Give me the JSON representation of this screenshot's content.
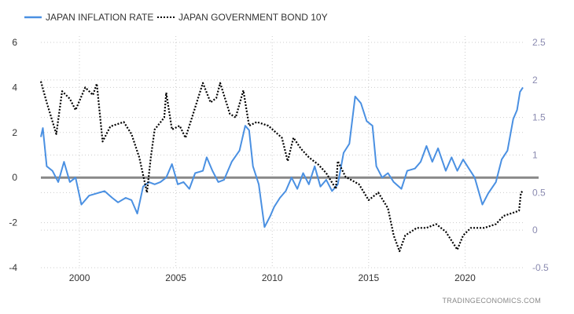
{
  "chart_data": {
    "type": "line",
    "title": "",
    "xlabel": "",
    "ylabel": "",
    "x_range": [
      1998.0,
      2023.0
    ],
    "x_ticks": [
      "2000",
      "2005",
      "2010",
      "2015",
      "2020"
    ],
    "x_tick_values": [
      2000,
      2005,
      2010,
      2015,
      2020
    ],
    "left_axis": {
      "range": [
        -4,
        6
      ],
      "ticks": [
        "-4",
        "-2",
        "0",
        "2",
        "4",
        "6"
      ],
      "tick_values": [
        -4,
        -2,
        0,
        2,
        4,
        6
      ]
    },
    "right_axis": {
      "range": [
        -0.5,
        2.5
      ],
      "ticks": [
        "-0.5",
        "0",
        "0.5",
        "1",
        "1.5",
        "2",
        "2.5"
      ],
      "tick_values": [
        -0.5,
        0,
        0.5,
        1,
        1.5,
        2,
        2.5
      ]
    },
    "zero_line": 0,
    "grid": true,
    "legend_position": "top-left",
    "series": [
      {
        "name": "JAPAN INFLATION RATE",
        "axis": "left",
        "color": "#4a90e2",
        "style": "solid",
        "x": [
          1998.0,
          1998.1,
          1998.3,
          1998.6,
          1998.9,
          1999.2,
          1999.5,
          1999.8,
          2000.1,
          2000.5,
          2000.9,
          2001.3,
          2001.7,
          2002.0,
          2002.4,
          2002.7,
          2003.0,
          2003.3,
          2003.6,
          2003.9,
          2004.2,
          2004.5,
          2004.8,
          2005.1,
          2005.4,
          2005.7,
          2006.0,
          2006.4,
          2006.6,
          2006.9,
          2007.2,
          2007.5,
          2007.9,
          2008.3,
          2008.6,
          2008.8,
          2009.0,
          2009.3,
          2009.6,
          2009.9,
          2010.1,
          2010.4,
          2010.7,
          2011.0,
          2011.3,
          2011.6,
          2011.9,
          2012.2,
          2012.5,
          2012.8,
          2013.1,
          2013.4,
          2013.7,
          2014.0,
          2014.3,
          2014.6,
          2014.9,
          2015.2,
          2015.4,
          2015.7,
          2016.0,
          2016.3,
          2016.7,
          2017.0,
          2017.4,
          2017.7,
          2018.0,
          2018.3,
          2018.6,
          2019.0,
          2019.3,
          2019.6,
          2019.9,
          2020.2,
          2020.5,
          2020.9,
          2021.2,
          2021.6,
          2021.9,
          2022.2,
          2022.5,
          2022.7,
          2022.85,
          2023.0
        ],
        "values": [
          1.8,
          2.2,
          0.5,
          0.3,
          -0.2,
          0.7,
          -0.2,
          0.0,
          -1.2,
          -0.8,
          -0.7,
          -0.6,
          -0.9,
          -1.1,
          -0.9,
          -1.0,
          -1.6,
          -0.4,
          -0.2,
          -0.3,
          -0.2,
          0.0,
          0.6,
          -0.3,
          -0.2,
          -0.5,
          0.2,
          0.3,
          0.9,
          0.3,
          -0.2,
          -0.1,
          0.7,
          1.2,
          2.3,
          2.1,
          0.5,
          -0.3,
          -2.2,
          -1.7,
          -1.3,
          -0.9,
          -0.6,
          0.0,
          -0.5,
          0.2,
          -0.3,
          0.5,
          -0.4,
          -0.1,
          -0.6,
          -0.3,
          1.1,
          1.5,
          3.6,
          3.3,
          2.5,
          2.3,
          0.5,
          0.0,
          0.2,
          -0.2,
          -0.5,
          0.3,
          0.4,
          0.7,
          1.4,
          0.7,
          1.3,
          0.3,
          0.9,
          0.3,
          0.8,
          0.4,
          0.0,
          -1.2,
          -0.7,
          -0.2,
          0.8,
          1.2,
          2.6,
          3.0,
          3.8,
          4.0
        ]
      },
      {
        "name": "JAPAN GOVERNMENT BOND 10Y",
        "axis": "right",
        "color": "#000000",
        "style": "dotted",
        "x": [
          1998.0,
          1998.3,
          1998.8,
          1999.1,
          1999.5,
          1999.8,
          2000.3,
          2000.7,
          2000.9,
          2001.2,
          2001.6,
          2002.3,
          2002.7,
          2003.1,
          2003.5,
          2003.7,
          2003.9,
          2004.4,
          2004.5,
          2004.8,
          2005.2,
          2005.5,
          2005.9,
          2006.4,
          2006.8,
          2007.1,
          2007.3,
          2007.8,
          2008.1,
          2008.5,
          2008.8,
          2009.2,
          2009.8,
          2010.5,
          2010.8,
          2011.1,
          2011.5,
          2011.9,
          2012.4,
          2012.8,
          2013.3,
          2013.4,
          2013.8,
          2014.5,
          2015.0,
          2015.5,
          2016.0,
          2016.3,
          2016.6,
          2016.9,
          2017.5,
          2018.0,
          2018.5,
          2019.0,
          2019.6,
          2019.9,
          2020.3,
          2021.0,
          2021.6,
          2022.0,
          2022.6,
          2022.8,
          2022.9,
          2023.0
        ],
        "values": [
          1.98,
          1.7,
          1.28,
          1.85,
          1.75,
          1.6,
          1.9,
          1.8,
          1.95,
          1.18,
          1.38,
          1.44,
          1.28,
          0.97,
          0.5,
          0.97,
          1.34,
          1.5,
          1.83,
          1.34,
          1.39,
          1.23,
          1.55,
          1.96,
          1.7,
          1.76,
          1.96,
          1.55,
          1.5,
          1.86,
          1.39,
          1.44,
          1.39,
          1.23,
          0.92,
          1.23,
          1.08,
          0.97,
          0.87,
          0.76,
          0.55,
          0.92,
          0.71,
          0.61,
          0.4,
          0.5,
          0.29,
          -0.07,
          -0.28,
          -0.07,
          0.03,
          0.03,
          0.08,
          -0.02,
          -0.26,
          -0.07,
          0.03,
          0.03,
          0.08,
          0.19,
          0.24,
          0.26,
          0.5,
          0.52
        ]
      }
    ]
  },
  "legend": {
    "items": [
      "JAPAN INFLATION RATE",
      "JAPAN GOVERNMENT BOND 10Y"
    ]
  },
  "credit": "TRADINGECONOMICS.COM"
}
